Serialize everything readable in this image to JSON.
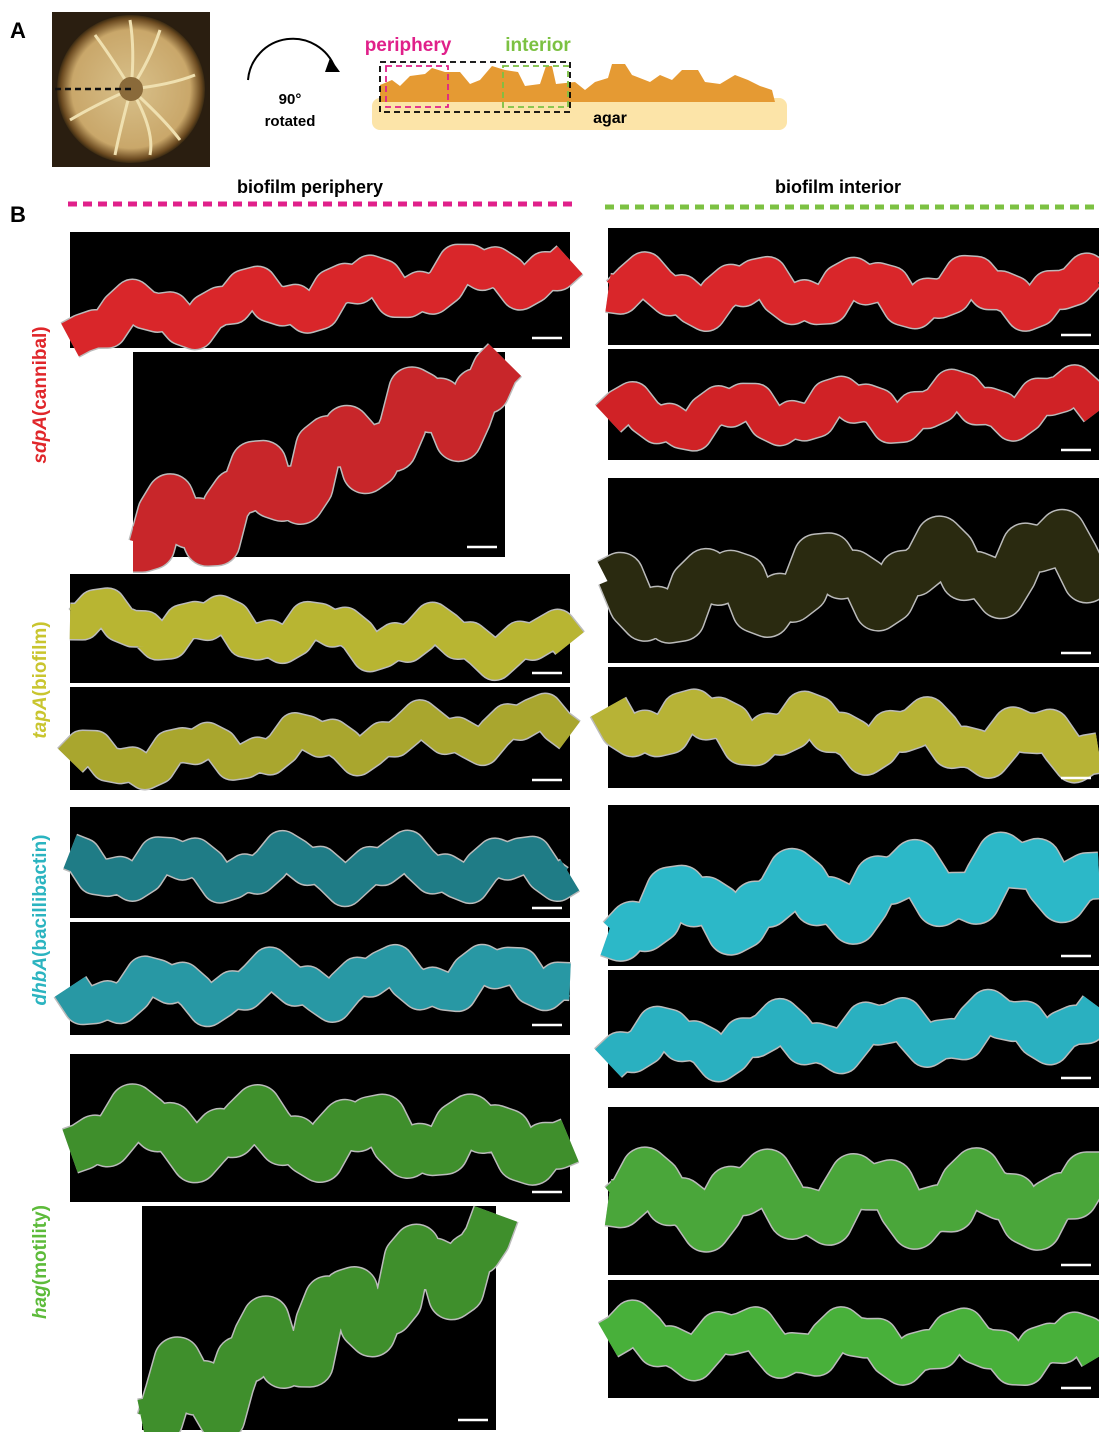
{
  "panel_a": {
    "label": "A",
    "rotation_label": "90°",
    "rotation_caption": "rotated",
    "periphery_label": "periphery",
    "interior_label": "interior",
    "agar_label": "agar"
  },
  "panel_b": {
    "label": "B",
    "columns": [
      "biofilm periphery",
      "biofilm interior"
    ],
    "rows": [
      {
        "gene": "sdpA",
        "role": "(cannibal)"
      },
      {
        "gene": "tapA",
        "role": "(biofilm)"
      },
      {
        "gene": "dhbA",
        "role": "(bacillibactin)"
      },
      {
        "gene": "hag",
        "role": "(motility)"
      }
    ]
  }
}
